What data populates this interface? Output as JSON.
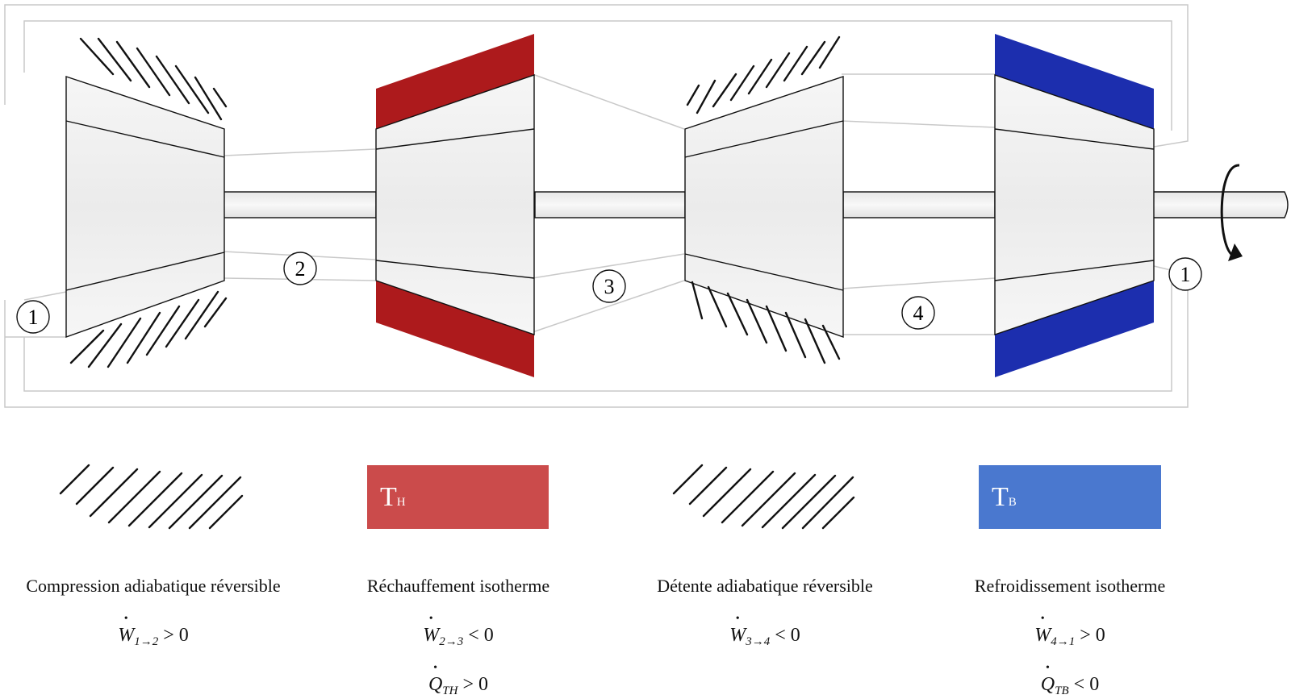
{
  "states": {
    "state_1": "1",
    "state_2": "2",
    "state_3": "3",
    "state_4": "4"
  },
  "legend": {
    "hot_source": {
      "symbol": "T",
      "subscript": "H",
      "color": "#cb4b4b"
    },
    "cold_source": {
      "symbol": "T",
      "subscript": "B",
      "color": "#4a78cf"
    }
  },
  "colors": {
    "hot_wall": "#ad1a1c",
    "cold_wall": "#1c2eae",
    "flow_line": "#c9c9c9"
  },
  "stages": [
    {
      "caption": "Compression adiabatique réversible",
      "work": {
        "symbol": "W",
        "subscript": "1→2",
        "relation": "> 0"
      }
    },
    {
      "caption": "Réchauffement isotherme",
      "work": {
        "symbol": "W",
        "subscript": "2→3",
        "relation": "< 0"
      },
      "heat": {
        "symbol": "Q",
        "subscript": "TH",
        "relation": "> 0"
      }
    },
    {
      "caption": "Détente adiabatique réversible",
      "work": {
        "symbol": "W",
        "subscript": "3→4",
        "relation": "< 0"
      }
    },
    {
      "caption": "Refroidissement isotherme",
      "work": {
        "symbol": "W",
        "subscript": "4→1",
        "relation": "> 0"
      },
      "heat": {
        "symbol": "Q",
        "subscript": "TB",
        "relation": "< 0"
      }
    }
  ]
}
